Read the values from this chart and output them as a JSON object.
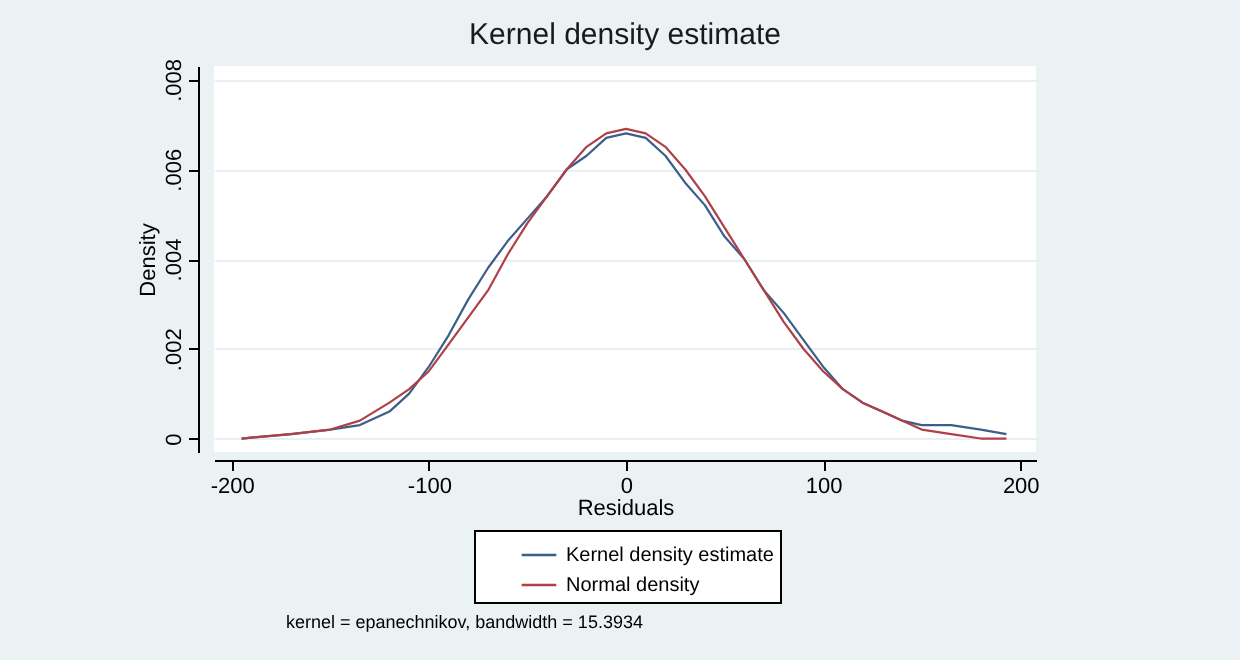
{
  "chart_data": {
    "type": "line",
    "title": "Kernel density estimate",
    "xlabel": "Residuals",
    "ylabel": "Density",
    "annotations": [
      "kernel = epanechnikov, bandwidth = 15.3934"
    ],
    "xlim": [
      -209,
      208
    ],
    "xticks": [
      -200,
      -100,
      0,
      100,
      200
    ],
    "ylim": [
      -0.0003,
      0.0083
    ],
    "yticks": [
      {
        "value": 0,
        "label": "0"
      },
      {
        "value": 0.002,
        "label": ".002"
      },
      {
        "value": 0.004,
        "label": ".004"
      },
      {
        "value": 0.006,
        "label": ".006"
      },
      {
        "value": 0.008,
        "label": ".008"
      }
    ],
    "grid": "y",
    "legend": "bottom",
    "marker": "none",
    "line_style": "solid",
    "x": [
      -195,
      -170,
      -150,
      -135,
      -120,
      -110,
      -100,
      -90,
      -80,
      -70,
      -60,
      -50,
      -40,
      -30,
      -20,
      -10,
      0,
      10,
      20,
      30,
      40,
      50,
      60,
      70,
      80,
      90,
      100,
      110,
      120,
      130,
      140,
      150,
      165,
      180,
      193
    ],
    "series": [
      {
        "name": "Kernel density estimate",
        "color": "#3a5f8a",
        "values": [
          0,
          0.0001,
          0.0002,
          0.0003,
          0.0006,
          0.001,
          0.0016,
          0.0023,
          0.0031,
          0.0038,
          0.0044,
          0.0049,
          0.0054,
          0.006,
          0.0063,
          0.0067,
          0.0068,
          0.0067,
          0.0063,
          0.0057,
          0.0052,
          0.0045,
          0.004,
          0.0033,
          0.0028,
          0.0022,
          0.0016,
          0.0011,
          0.0008,
          0.0006,
          0.0004,
          0.0003,
          0.0003,
          0.0002,
          0.0001
        ]
      },
      {
        "name": "Normal density",
        "color": "#b04048",
        "values": [
          0,
          0.0001,
          0.0002,
          0.0004,
          0.0008,
          0.0011,
          0.0015,
          0.0021,
          0.0027,
          0.0033,
          0.0041,
          0.0048,
          0.0054,
          0.006,
          0.0065,
          0.0068,
          0.0069,
          0.0068,
          0.0065,
          0.006,
          0.0054,
          0.0047,
          0.004,
          0.0033,
          0.0026,
          0.002,
          0.0015,
          0.0011,
          0.0008,
          0.0006,
          0.0004,
          0.0002,
          0.0001,
          0,
          0
        ]
      }
    ]
  }
}
